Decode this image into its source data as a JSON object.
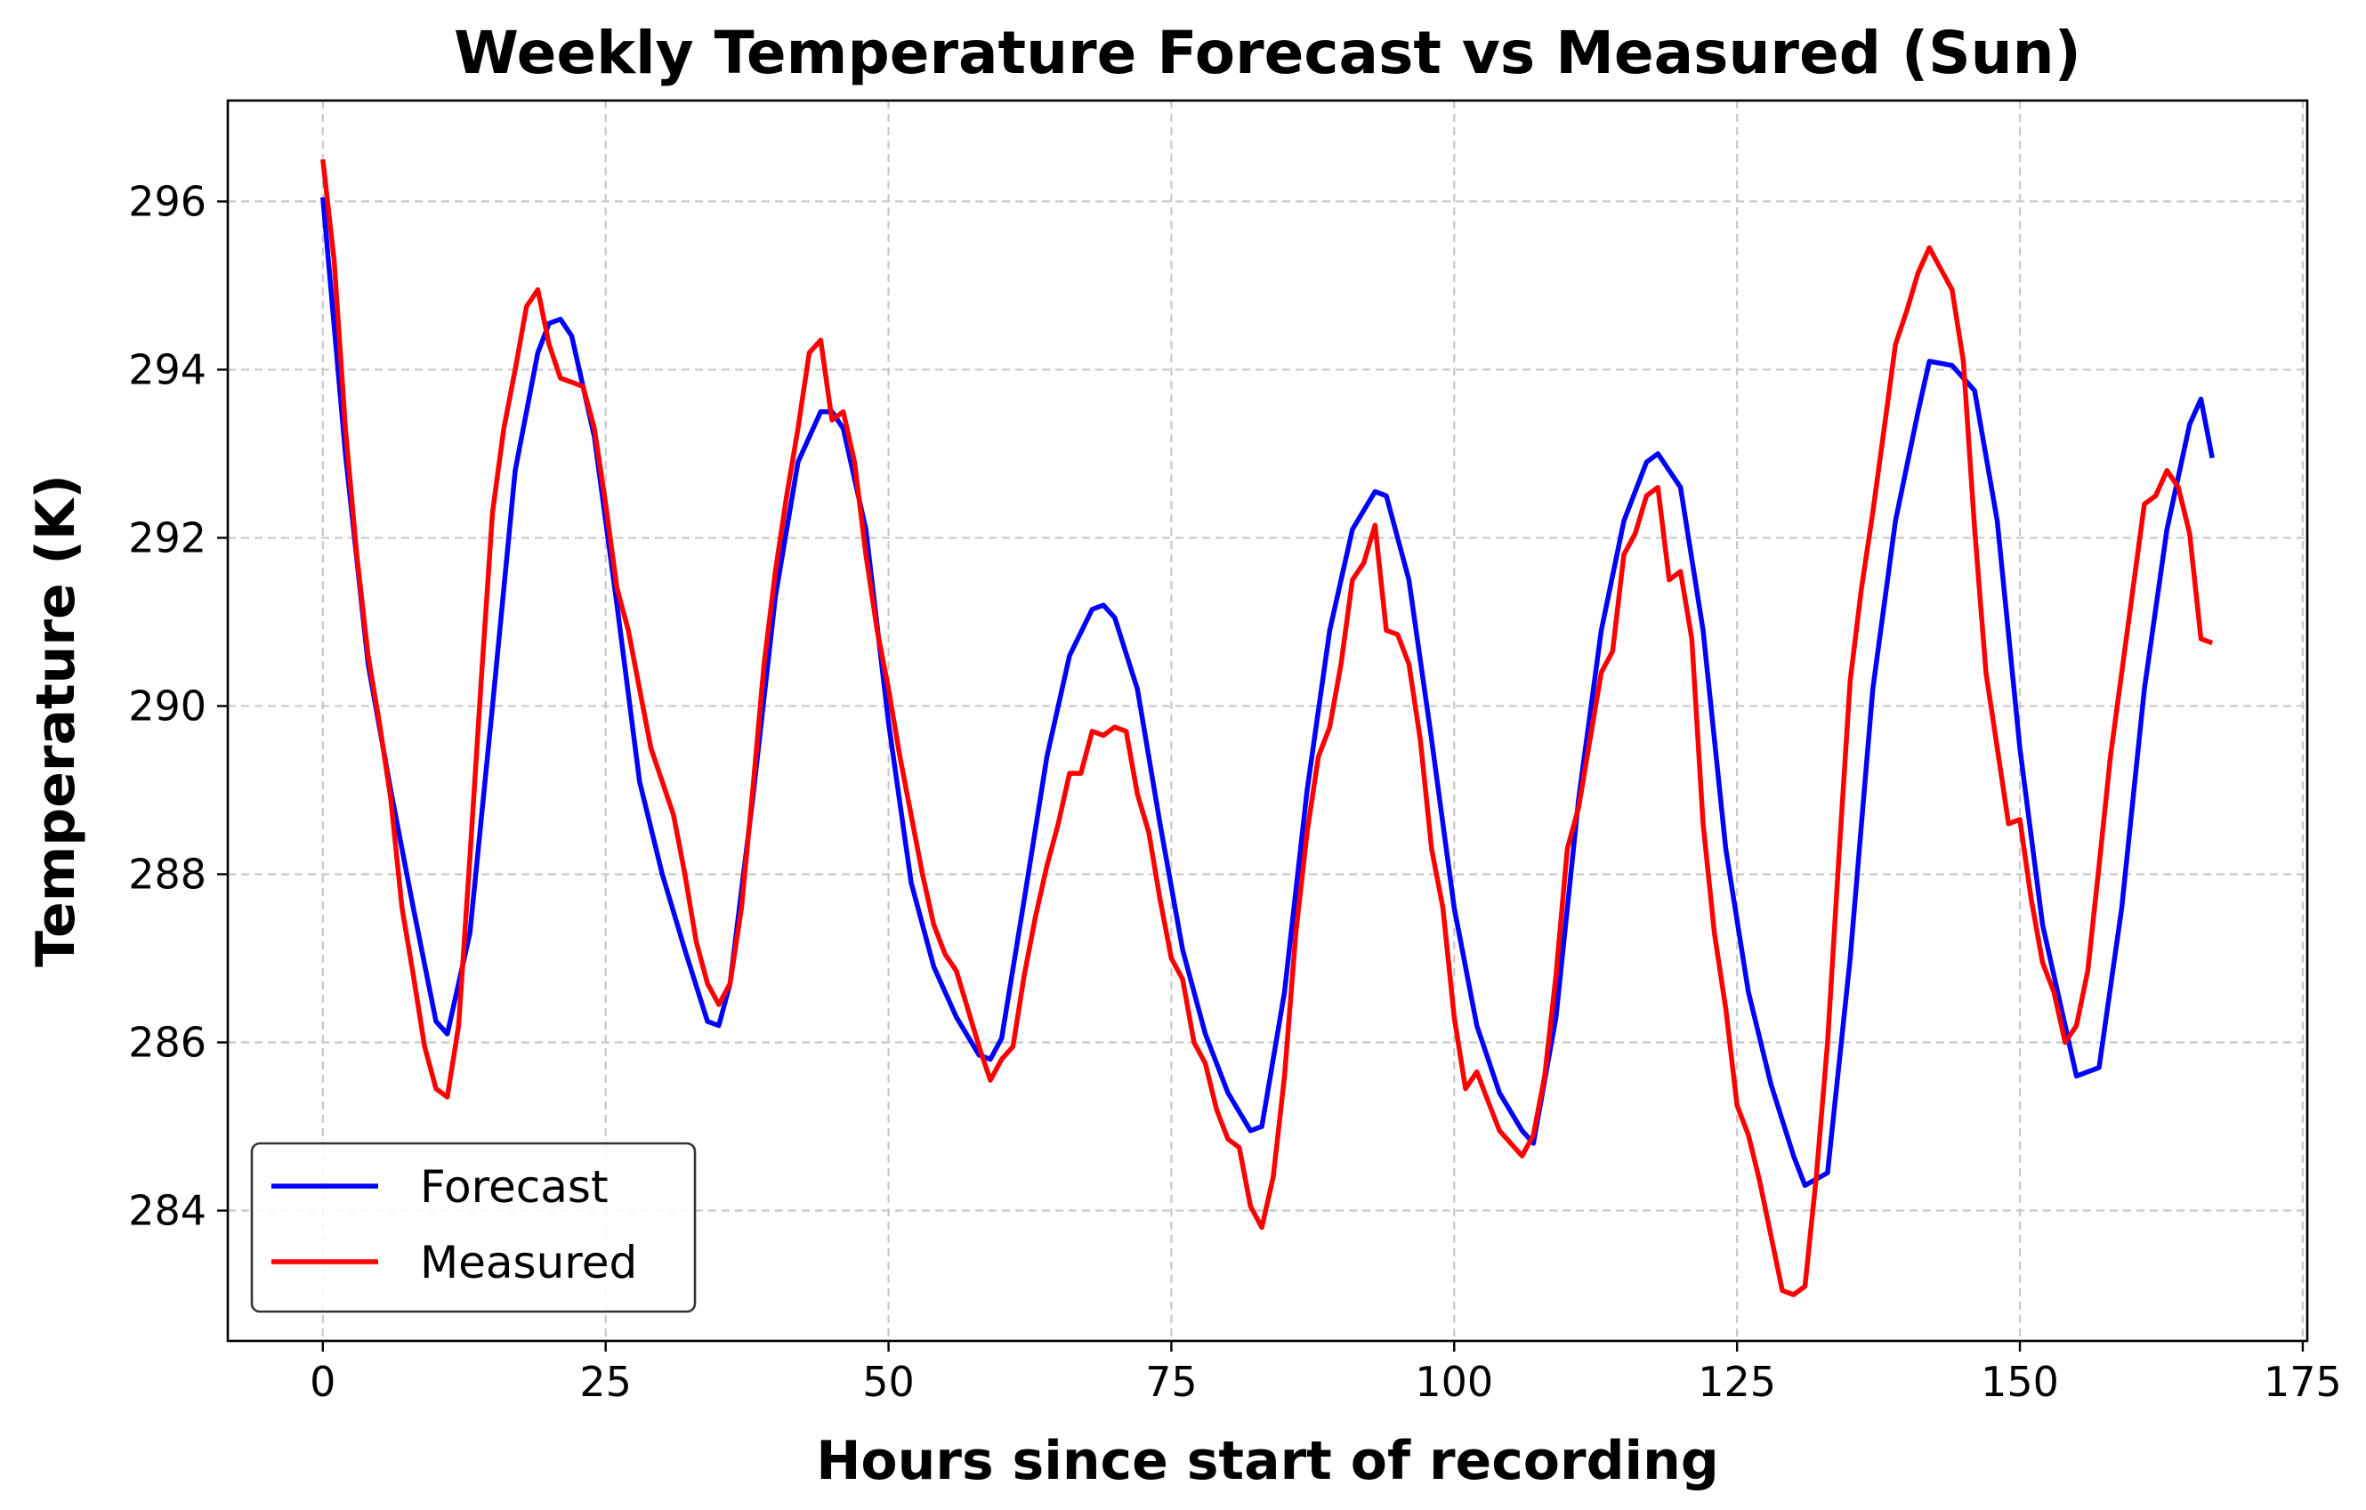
{
  "chart_data": {
    "type": "line",
    "title": "Weekly Temperature Forecast vs Measured (Sun)",
    "xlabel": "Hours since start of recording",
    "ylabel": "Temperature (K)",
    "xlim": [
      -8.4,
      175.4
    ],
    "ylim": [
      282.45,
      297.2
    ],
    "xticks": [
      0,
      25,
      50,
      75,
      100,
      125,
      150,
      175
    ],
    "yticks": [
      284,
      286,
      288,
      290,
      292,
      294,
      296
    ],
    "xtick_labels": [
      "0",
      "25",
      "50",
      "75",
      "100",
      "125",
      "150",
      "175"
    ],
    "ytick_labels": [
      "284",
      "286",
      "288",
      "290",
      "292",
      "294",
      "296"
    ],
    "grid": true,
    "legend_position": "lower-left",
    "series": [
      {
        "name": "Forecast",
        "color": "#0000ff",
        "x": [
          0,
          2,
          4,
          6,
          8,
          10,
          11,
          13,
          15,
          17,
          19,
          20,
          21,
          22,
          24,
          26,
          28,
          30,
          32,
          34,
          35,
          36,
          38,
          40,
          42,
          44,
          45,
          46,
          48,
          50,
          52,
          54,
          56,
          58,
          59,
          60,
          62,
          64,
          66,
          68,
          69,
          70,
          72,
          74,
          76,
          78,
          80,
          82,
          83,
          85,
          87,
          89,
          91,
          93,
          94,
          96,
          98,
          100,
          102,
          104,
          106,
          107,
          109,
          111,
          113,
          115,
          117,
          118,
          120,
          122,
          124,
          126,
          128,
          130,
          131,
          133,
          135,
          137,
          139,
          141,
          142,
          144,
          146,
          148,
          150,
          152,
          154,
          155,
          157,
          159,
          161,
          163,
          165,
          166,
          167
        ],
        "y": [
          296.05,
          293.0,
          290.5,
          289.0,
          287.6,
          286.25,
          286.1,
          287.3,
          290.0,
          292.8,
          294.2,
          294.55,
          294.6,
          294.4,
          293.2,
          291.2,
          289.1,
          288.0,
          287.1,
          286.25,
          286.2,
          286.7,
          288.9,
          291.3,
          292.9,
          293.5,
          293.5,
          293.3,
          292.1,
          289.8,
          287.9,
          286.9,
          286.3,
          285.85,
          285.8,
          286.05,
          287.7,
          289.4,
          290.6,
          291.15,
          291.2,
          291.05,
          290.2,
          288.6,
          287.1,
          286.1,
          285.4,
          284.95,
          285.0,
          286.6,
          289.0,
          290.9,
          292.1,
          292.55,
          292.5,
          291.5,
          289.6,
          287.6,
          286.2,
          285.4,
          284.95,
          284.8,
          286.3,
          288.9,
          290.9,
          292.2,
          292.9,
          293.0,
          292.6,
          290.9,
          288.3,
          286.6,
          285.5,
          284.65,
          284.3,
          284.45,
          287.0,
          290.2,
          292.2,
          293.5,
          294.1,
          294.05,
          293.75,
          292.2,
          289.5,
          287.4,
          286.2,
          285.6,
          285.7,
          287.6,
          290.2,
          292.1,
          293.35,
          293.65,
          292.95
        ]
      },
      {
        "name": "Measured",
        "color": "#ff0000",
        "x": [
          0,
          1,
          2,
          3,
          4,
          5,
          6,
          7,
          8,
          9,
          10,
          11,
          12,
          13,
          14,
          15,
          16,
          17,
          18,
          19,
          20,
          21,
          22,
          23,
          24,
          25,
          26,
          27,
          28,
          29,
          30,
          31,
          32,
          33,
          34,
          35,
          36,
          37,
          38,
          39,
          40,
          41,
          42,
          43,
          44,
          45,
          46,
          47,
          48,
          49,
          50,
          51,
          52,
          53,
          54,
          55,
          56,
          57,
          58,
          59,
          60,
          61,
          62,
          63,
          64,
          65,
          66,
          67,
          68,
          69,
          70,
          71,
          72,
          73,
          74,
          75,
          76,
          77,
          78,
          79,
          80,
          81,
          82,
          83,
          84,
          85,
          86,
          87,
          88,
          89,
          90,
          91,
          92,
          93,
          94,
          95,
          96,
          97,
          98,
          99,
          100,
          101,
          102,
          103,
          104,
          105,
          106,
          107,
          108,
          109,
          110,
          111,
          112,
          113,
          114,
          115,
          116,
          117,
          118,
          119,
          120,
          121,
          122,
          123,
          124,
          125,
          126,
          127,
          128,
          129,
          130,
          131,
          132,
          133,
          134,
          135,
          136,
          137,
          138,
          139,
          140,
          141,
          142,
          143,
          144,
          145,
          146,
          147,
          148,
          149,
          150,
          151,
          152,
          153,
          154,
          155,
          156,
          157,
          158,
          159,
          160,
          161,
          162,
          163,
          164,
          165,
          166,
          167
        ],
        "y": [
          296.5,
          295.3,
          293.3,
          291.8,
          290.6,
          289.8,
          288.9,
          287.6,
          286.8,
          285.95,
          285.45,
          285.35,
          286.2,
          288.2,
          290.3,
          292.3,
          293.3,
          294.0,
          294.75,
          294.95,
          294.3,
          293.9,
          293.85,
          293.8,
          293.3,
          292.4,
          291.4,
          290.9,
          290.2,
          289.5,
          289.1,
          288.7,
          288.0,
          287.2,
          286.7,
          286.45,
          286.7,
          287.6,
          289.0,
          290.5,
          291.6,
          292.5,
          293.3,
          294.2,
          294.35,
          293.4,
          293.5,
          292.9,
          291.8,
          290.9,
          290.2,
          289.4,
          288.7,
          288.0,
          287.4,
          287.05,
          286.85,
          286.4,
          285.95,
          285.55,
          285.8,
          285.95,
          286.8,
          287.5,
          288.1,
          288.6,
          289.2,
          289.2,
          289.7,
          289.65,
          289.75,
          289.7,
          288.95,
          288.5,
          287.7,
          287.0,
          286.75,
          286.0,
          285.75,
          285.2,
          284.85,
          284.75,
          284.05,
          283.8,
          284.4,
          285.6,
          287.3,
          288.5,
          289.4,
          289.75,
          290.5,
          291.5,
          291.7,
          292.15,
          290.9,
          290.85,
          290.5,
          289.6,
          288.3,
          287.6,
          286.3,
          285.45,
          285.65,
          285.3,
          284.95,
          284.8,
          284.65,
          284.9,
          285.6,
          286.8,
          288.3,
          288.8,
          289.6,
          290.4,
          290.65,
          291.8,
          292.05,
          292.5,
          292.6,
          291.5,
          291.6,
          290.8,
          288.6,
          287.3,
          286.4,
          285.25,
          284.9,
          284.35,
          283.7,
          283.05,
          283.0,
          283.1,
          284.4,
          286.0,
          288.2,
          290.3,
          291.4,
          292.3,
          293.3,
          294.3,
          294.7,
          295.15,
          295.45,
          295.2,
          294.95,
          294.1,
          292.1,
          290.4,
          289.5,
          288.6,
          288.65,
          287.7,
          286.95,
          286.6,
          286.0,
          286.2,
          286.85,
          288.1,
          289.4,
          290.4,
          291.4,
          292.4,
          292.5,
          292.8,
          292.6,
          292.05,
          290.8,
          290.75
        ]
      }
    ]
  }
}
